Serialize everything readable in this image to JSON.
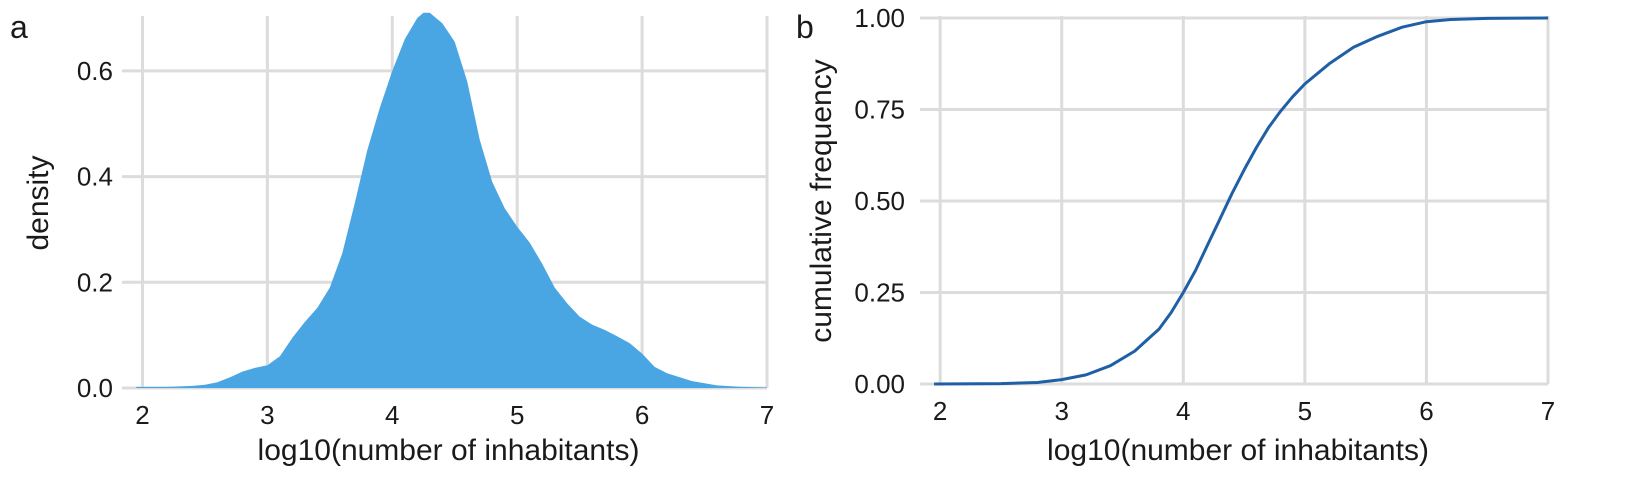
{
  "chart_data": [
    {
      "panel": "a",
      "type": "area",
      "xlabel": "log10(number of inhabitants)",
      "ylabel": "density",
      "xlim": [
        1.9,
        7.0
      ],
      "ylim": [
        0,
        0.7
      ],
      "xticks": [
        "2",
        "3",
        "4",
        "5",
        "6",
        "7"
      ],
      "yticks": [
        "0.0",
        "0.2",
        "0.4",
        "0.6"
      ],
      "grid": true,
      "fill_color": "#4aa5e3",
      "x": [
        1.95,
        2.0,
        2.2,
        2.4,
        2.5,
        2.6,
        2.7,
        2.8,
        2.9,
        3.0,
        3.1,
        3.2,
        3.3,
        3.4,
        3.5,
        3.6,
        3.7,
        3.8,
        3.9,
        4.0,
        4.1,
        4.2,
        4.25,
        4.3,
        4.35,
        4.4,
        4.5,
        4.6,
        4.7,
        4.8,
        4.9,
        5.0,
        5.1,
        5.2,
        5.3,
        5.4,
        5.5,
        5.6,
        5.7,
        5.8,
        5.9,
        6.0,
        6.1,
        6.2,
        6.4,
        6.6,
        6.8,
        7.0
      ],
      "y": [
        0.002,
        0.002,
        0.002,
        0.004,
        0.006,
        0.011,
        0.02,
        0.031,
        0.038,
        0.043,
        0.06,
        0.095,
        0.125,
        0.152,
        0.19,
        0.255,
        0.35,
        0.45,
        0.53,
        0.6,
        0.66,
        0.7,
        0.71,
        0.71,
        0.7,
        0.69,
        0.655,
        0.58,
        0.47,
        0.39,
        0.34,
        0.305,
        0.275,
        0.235,
        0.19,
        0.16,
        0.135,
        0.12,
        0.11,
        0.098,
        0.085,
        0.065,
        0.04,
        0.028,
        0.013,
        0.005,
        0.002,
        0.001
      ]
    },
    {
      "panel": "b",
      "type": "line",
      "xlabel": "log10(number of inhabitants)",
      "ylabel": "cumulative frequency",
      "xlim": [
        1.9,
        7.0
      ],
      "ylim": [
        0,
        1
      ],
      "xticks": [
        "2",
        "3",
        "4",
        "5",
        "6",
        "7"
      ],
      "yticks": [
        "0.00",
        "0.25",
        "0.50",
        "0.75",
        "1.00"
      ],
      "grid": true,
      "line_color": "#1f5fa6",
      "x": [
        1.95,
        2.5,
        2.8,
        3.0,
        3.2,
        3.4,
        3.6,
        3.8,
        3.9,
        4.0,
        4.1,
        4.2,
        4.3,
        4.4,
        4.5,
        4.6,
        4.7,
        4.8,
        4.9,
        5.0,
        5.2,
        5.4,
        5.6,
        5.8,
        6.0,
        6.2,
        6.5,
        7.0
      ],
      "y": [
        0.0,
        0.001,
        0.004,
        0.012,
        0.025,
        0.05,
        0.09,
        0.15,
        0.195,
        0.25,
        0.31,
        0.38,
        0.45,
        0.52,
        0.585,
        0.645,
        0.7,
        0.745,
        0.785,
        0.82,
        0.875,
        0.92,
        0.95,
        0.975,
        0.99,
        0.996,
        0.999,
        1.0
      ]
    }
  ]
}
